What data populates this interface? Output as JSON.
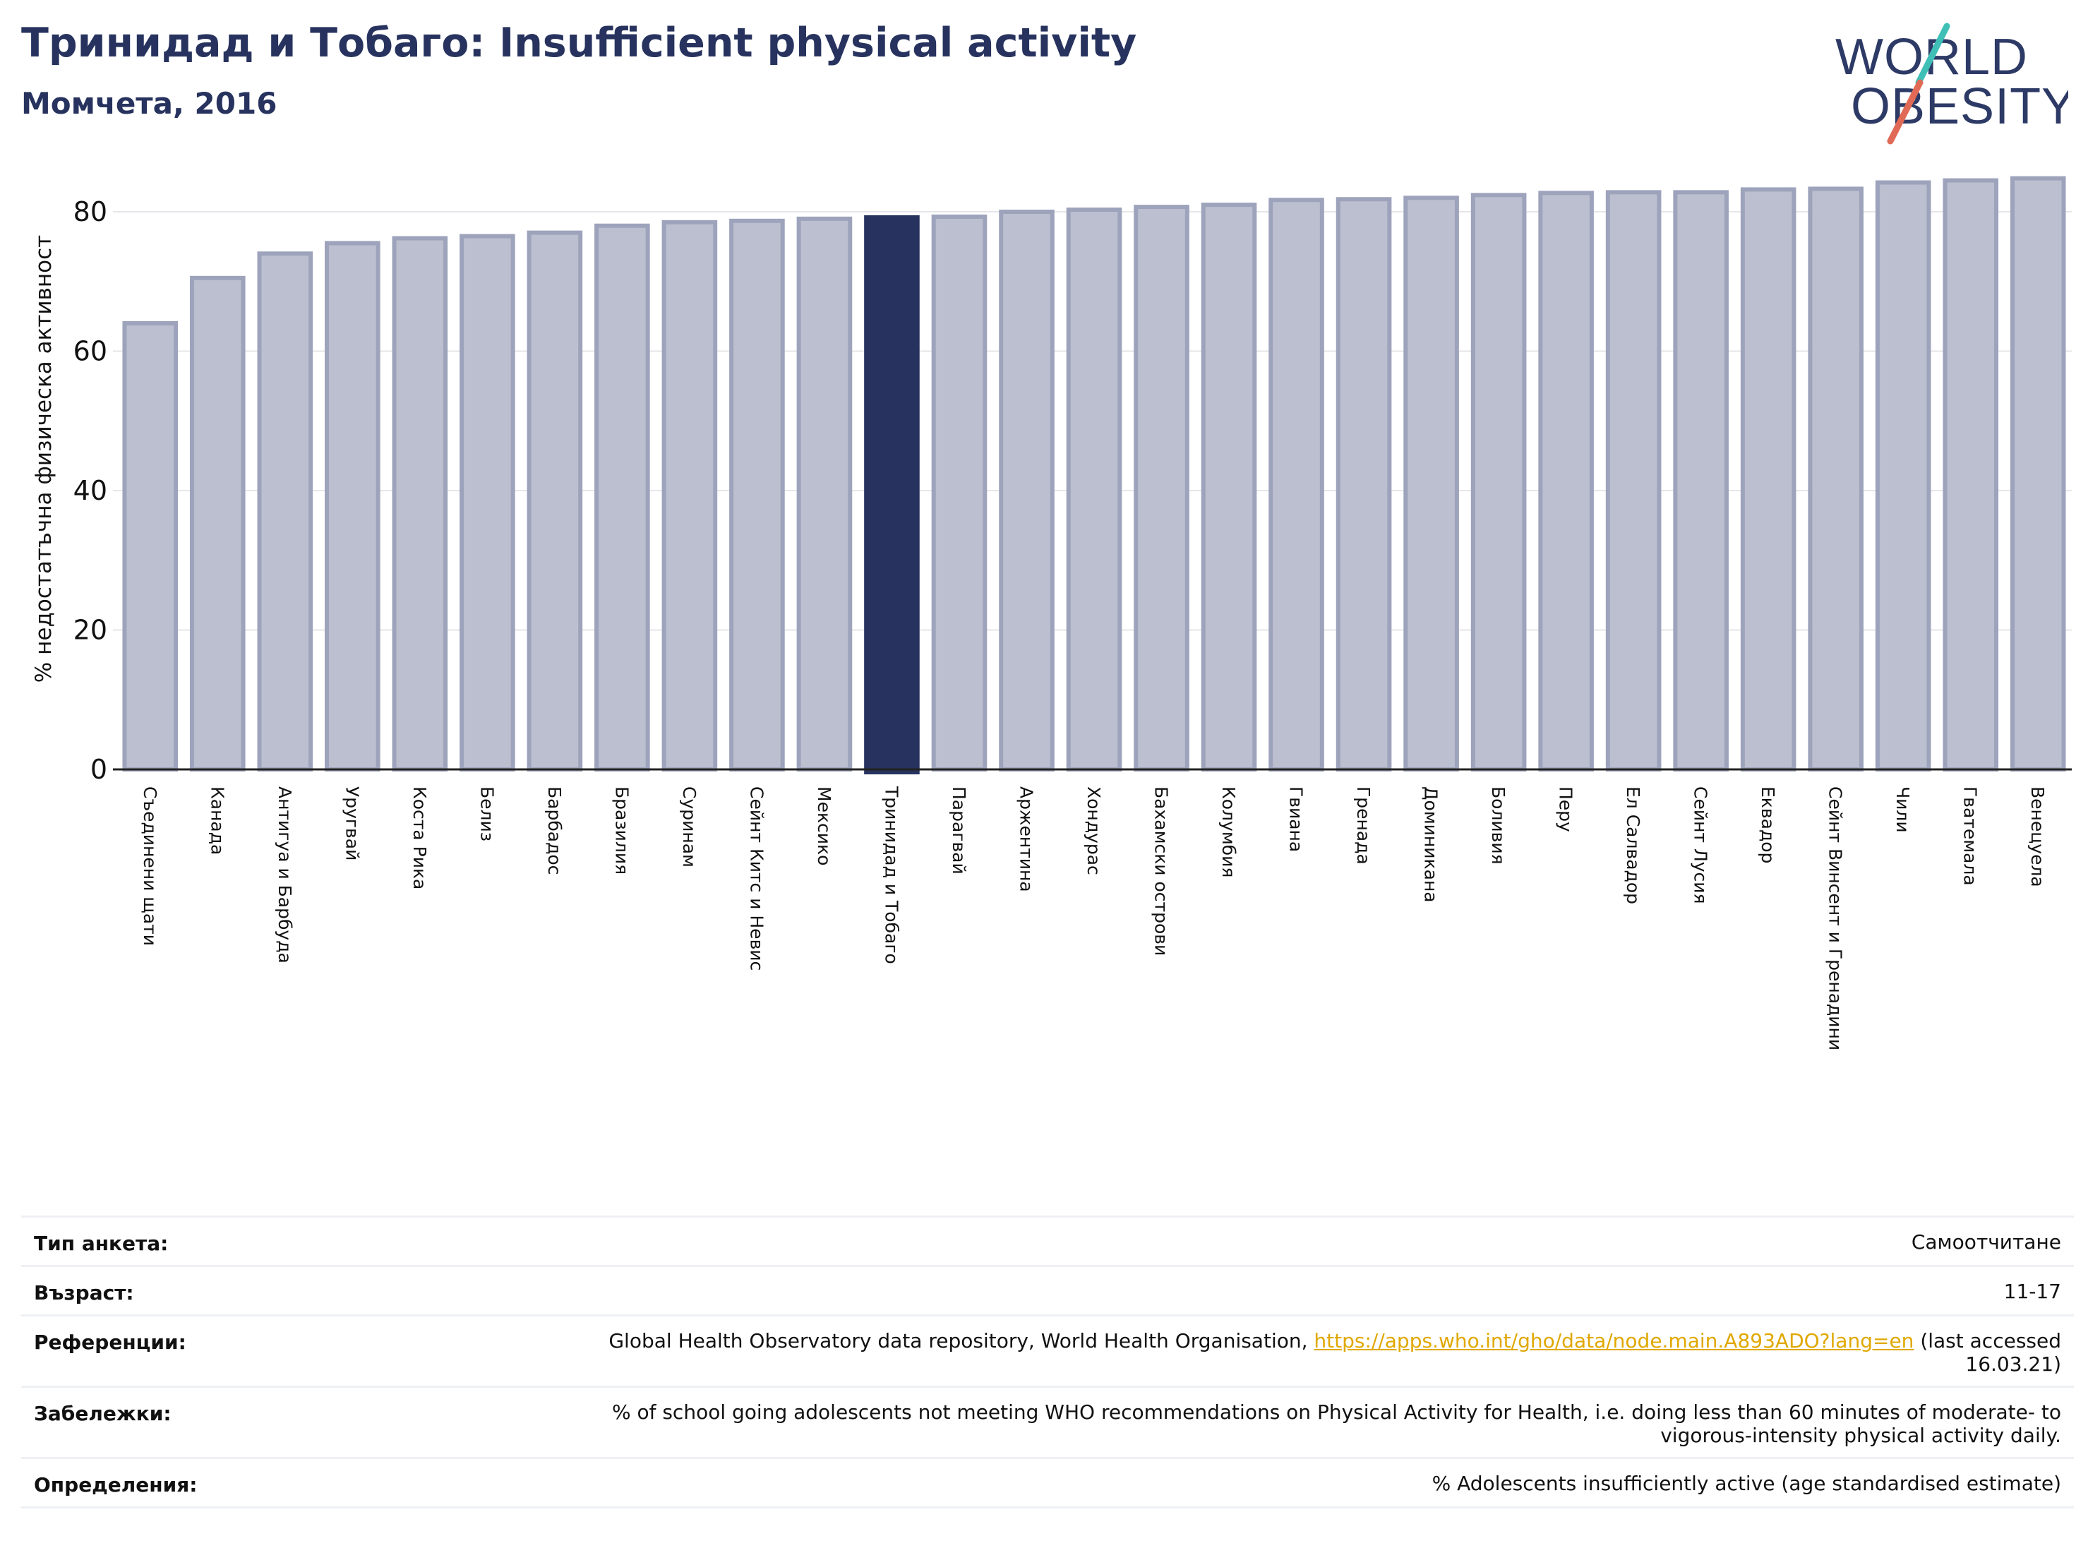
{
  "header": {
    "title": "Тринидад и Тобаго: Insufficient physical activity",
    "subtitle": "Момчета, 2016"
  },
  "logo": {
    "line1": "WORLD",
    "line2": "OBESITY",
    "text_color": "#2d3a66",
    "slash_colors": [
      "#3fbfb6",
      "#e06a55"
    ]
  },
  "colors": {
    "bar_fill": "#bcbfcf",
    "bar_stroke": "#9ea3bc",
    "highlight": "#27335e",
    "grid": "#e6e6ea",
    "axis": "#222222"
  },
  "chart_data": {
    "type": "bar",
    "title": "",
    "xlabel": "",
    "ylabel": "% недостатъчна физическа активност",
    "ylim": [
      0,
      85
    ],
    "yticks": [
      0,
      20,
      40,
      60,
      80
    ],
    "grid": true,
    "highlight": "Тринидад и Тобаго",
    "categories": [
      "Съединени щати",
      "Канада",
      "Антигуа и Барбуда",
      "Уругвай",
      "Коста Рика",
      "Белиз",
      "Барбадос",
      "Бразилия",
      "Суринам",
      "Сейнт Китс и Невис",
      "Мексико",
      "Тринидад и Тобаго",
      "Парагвай",
      "Аржентина",
      "Хондурас",
      "Бахамски острови",
      "Колумбия",
      "Гвиана",
      "Гренада",
      "Доминикана",
      "Боливия",
      "Перу",
      "Ел Салвадор",
      "Сейнт Лусия",
      "Еквадор",
      "Сейнт Винсент и Гренадини",
      "Чили",
      "Гватемала",
      "Венецуела"
    ],
    "values": [
      64.0,
      70.5,
      74.0,
      75.5,
      76.2,
      76.5,
      77.0,
      78.0,
      78.5,
      78.7,
      79.0,
      79.2,
      79.3,
      80.0,
      80.3,
      80.7,
      81.0,
      81.7,
      81.8,
      82.0,
      82.4,
      82.7,
      82.8,
      82.8,
      83.2,
      83.3,
      84.2,
      84.5,
      84.8
    ]
  },
  "meta": [
    {
      "label": "Тип анкета:",
      "value": "Самоотчитане"
    },
    {
      "label": "Възраст:",
      "value": "11-17"
    },
    {
      "label": "Референции:",
      "value_pre": "Global Health Observatory data repository, World Health Organisation, ",
      "link": "https://apps.who.int/gho/data/node.main.A893ADO?lang=en",
      "value_post": " (last accessed 16.03.21)"
    },
    {
      "label": "Забележки:",
      "value": "% of school going adolescents not meeting WHO recommendations on Physical Activity for Health, i.e. doing less than 60 minutes of moderate- to vigorous-intensity physical activity daily."
    },
    {
      "label": "Определения:",
      "value": "% Adolescents insufficiently active (age standardised estimate)"
    }
  ]
}
